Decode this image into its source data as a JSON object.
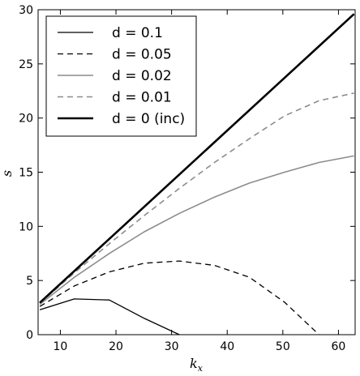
{
  "chart_data": {
    "type": "line",
    "title": "",
    "xlabel": "k",
    "xlabel_sub": "x",
    "ylabel": "s",
    "xlim": [
      6,
      63
    ],
    "ylim": [
      0,
      30
    ],
    "xticks": [
      10,
      20,
      30,
      40,
      50,
      60
    ],
    "yticks": [
      0,
      5,
      10,
      15,
      20,
      25,
      30
    ],
    "grid": false,
    "legend_position": "top-left",
    "series": [
      {
        "name": "d = 0.1",
        "color": "#000000",
        "style": "solid",
        "width": 1.3,
        "x": [
          6.3,
          12.5,
          18.8,
          25.1,
          31.4
        ],
        "y": [
          2.3,
          3.3,
          3.2,
          1.5,
          0.0
        ]
      },
      {
        "name": "d = 0.05",
        "color": "#000000",
        "style": "dashed",
        "width": 1.3,
        "x": [
          6.3,
          12.5,
          18.8,
          25.1,
          31.4,
          37.7,
          44.0,
          50.3,
          56.5
        ],
        "y": [
          2.6,
          4.5,
          5.8,
          6.6,
          6.8,
          6.4,
          5.3,
          3.0,
          0.0
        ]
      },
      {
        "name": "d = 0.02",
        "color": "#8c8c8c",
        "style": "solid",
        "width": 1.6,
        "x": [
          6.3,
          12.5,
          18.8,
          25.1,
          31.4,
          37.7,
          44.0,
          50.3,
          56.5,
          62.8
        ],
        "y": [
          2.8,
          5.3,
          7.5,
          9.5,
          11.2,
          12.7,
          14.0,
          15.0,
          15.9,
          16.5
        ]
      },
      {
        "name": "d = 0.01",
        "color": "#8c8c8c",
        "style": "dashed",
        "width": 1.6,
        "x": [
          6.3,
          12.5,
          18.8,
          25.1,
          31.4,
          37.7,
          44.0,
          50.3,
          56.5,
          62.8
        ],
        "y": [
          2.9,
          5.7,
          8.4,
          11.0,
          13.5,
          15.9,
          18.1,
          20.2,
          21.6,
          22.3
        ]
      },
      {
        "name": "d = 0 (inc)",
        "color": "#000000",
        "style": "solid",
        "width": 2.6,
        "x": [
          6.3,
          62.8
        ],
        "y": [
          2.95,
          29.6
        ]
      }
    ]
  }
}
